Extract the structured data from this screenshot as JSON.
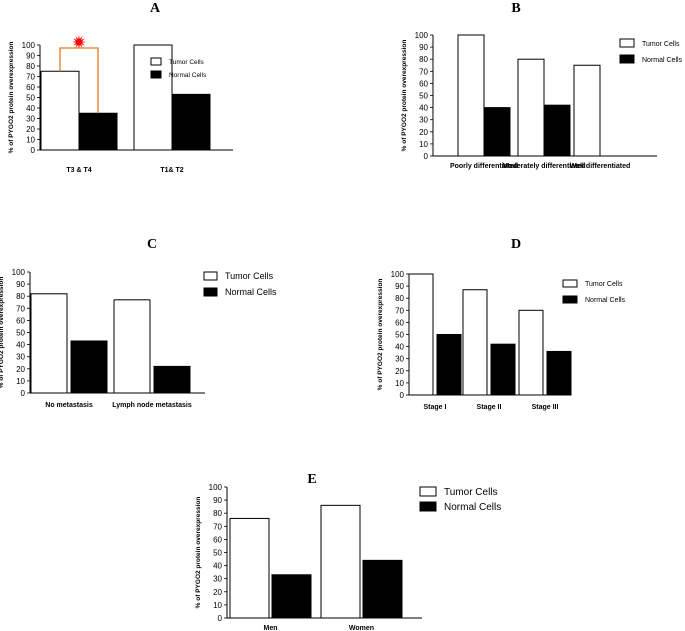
{
  "chart_data": [
    {
      "type": "bar",
      "panel": "A",
      "categories": [
        "T3 & T4",
        "T1& T2"
      ],
      "series": [
        {
          "name": "Tumor Cells",
          "values": [
            75,
            100
          ],
          "color": "#ffffff"
        },
        {
          "name": "Normal Cells",
          "values": [
            35,
            53
          ],
          "color": "#000000"
        }
      ],
      "ylabel": "% of PYGO2 protein overexpression",
      "ylim": [
        0,
        100
      ],
      "yticks": [
        0,
        10,
        20,
        30,
        40,
        50,
        60,
        70,
        80,
        90,
        100
      ],
      "legend": "top-right",
      "annotation": {
        "type": "significance-bracket",
        "color": "#e07b20",
        "marker_color": "#ff0000"
      }
    },
    {
      "type": "bar",
      "panel": "B",
      "categories": [
        "Poorly differentiated",
        "Moderately differentiated",
        "Well differentiated"
      ],
      "series": [
        {
          "name": "Tumor Cells",
          "values": [
            100,
            80,
            75
          ],
          "color": "#ffffff"
        },
        {
          "name": "Normal Cells",
          "values": [
            40,
            42,
            0
          ],
          "color": "#000000"
        }
      ],
      "ylabel": "% of PYGO2 protein overexpression",
      "ylim": [
        0,
        100
      ],
      "yticks": [
        0,
        10,
        20,
        30,
        40,
        50,
        60,
        70,
        80,
        90,
        100
      ],
      "legend": "top-right"
    },
    {
      "type": "bar",
      "panel": "C",
      "categories": [
        "No metastasis",
        "Lymph node metastasis"
      ],
      "series": [
        {
          "name": "Tumor Cells",
          "values": [
            82,
            77
          ],
          "color": "#ffffff"
        },
        {
          "name": "Normal Cells",
          "values": [
            43,
            22
          ],
          "color": "#000000"
        }
      ],
      "ylabel": "% of PYGO2 protein overexpression",
      "ylim": [
        0,
        100
      ],
      "yticks": [
        0,
        10,
        20,
        30,
        40,
        50,
        60,
        70,
        80,
        90,
        100
      ],
      "legend": "top-right"
    },
    {
      "type": "bar",
      "panel": "D",
      "categories": [
        "Stage I",
        "Stage II",
        "Stage III"
      ],
      "series": [
        {
          "name": "Tumor Cells",
          "values": [
            100,
            87,
            70
          ],
          "color": "#ffffff"
        },
        {
          "name": "Normal Cells",
          "values": [
            50,
            42,
            36
          ],
          "color": "#000000"
        }
      ],
      "ylabel": "% of PYGO2 protein overexpression",
      "ylim": [
        0,
        100
      ],
      "yticks": [
        0,
        10,
        20,
        30,
        40,
        50,
        60,
        70,
        80,
        90,
        100
      ],
      "legend": "top-right"
    },
    {
      "type": "bar",
      "panel": "E",
      "categories": [
        "Men",
        "Women"
      ],
      "series": [
        {
          "name": "Tumor Cells",
          "values": [
            76,
            86
          ],
          "color": "#ffffff"
        },
        {
          "name": "Normal Cells",
          "values": [
            33,
            44
          ],
          "color": "#000000"
        }
      ],
      "ylabel": "% of PYGO2 protein overexpression",
      "ylim": [
        0,
        100
      ],
      "yticks": [
        0,
        10,
        20,
        30,
        40,
        50,
        60,
        70,
        80,
        90,
        100
      ],
      "legend": "top-right"
    }
  ]
}
